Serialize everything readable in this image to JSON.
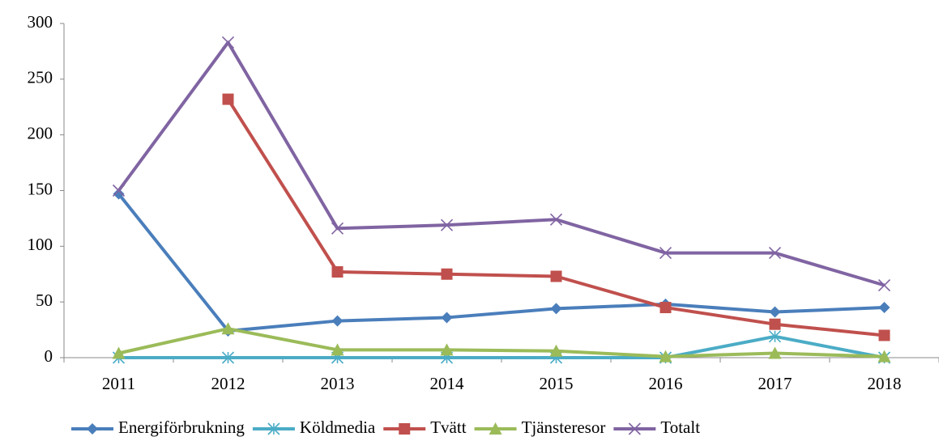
{
  "chart_data": {
    "type": "line",
    "categories": [
      "2011",
      "2012",
      "2013",
      "2014",
      "2015",
      "2016",
      "2017",
      "2018"
    ],
    "series": [
      {
        "name": "Energiförbrukning",
        "color": "#4a7ebb",
        "marker": "diamond",
        "values": [
          147,
          24,
          33,
          36,
          44,
          48,
          41,
          45
        ]
      },
      {
        "name": "Köldmedia",
        "color": "#4bacc6",
        "marker": "asterisk",
        "values": [
          0,
          0,
          0,
          0,
          0,
          0,
          19,
          0
        ]
      },
      {
        "name": "Tvätt",
        "color": "#c0504d",
        "marker": "square",
        "values": [
          null,
          232,
          77,
          75,
          73,
          45,
          30,
          20
        ]
      },
      {
        "name": "Tjänsteresor",
        "color": "#9bbb59",
        "marker": "triangle",
        "values": [
          4,
          26,
          7,
          7,
          6,
          1,
          4,
          1
        ]
      },
      {
        "name": "Totalt",
        "color": "#8064a2",
        "marker": "x",
        "values": [
          150,
          283,
          116,
          119,
          124,
          94,
          94,
          65
        ]
      }
    ],
    "ylim": [
      0,
      300
    ],
    "yticks": [
      0,
      50,
      100,
      150,
      200,
      250,
      300
    ],
    "grid": false,
    "legend": "bottom"
  }
}
